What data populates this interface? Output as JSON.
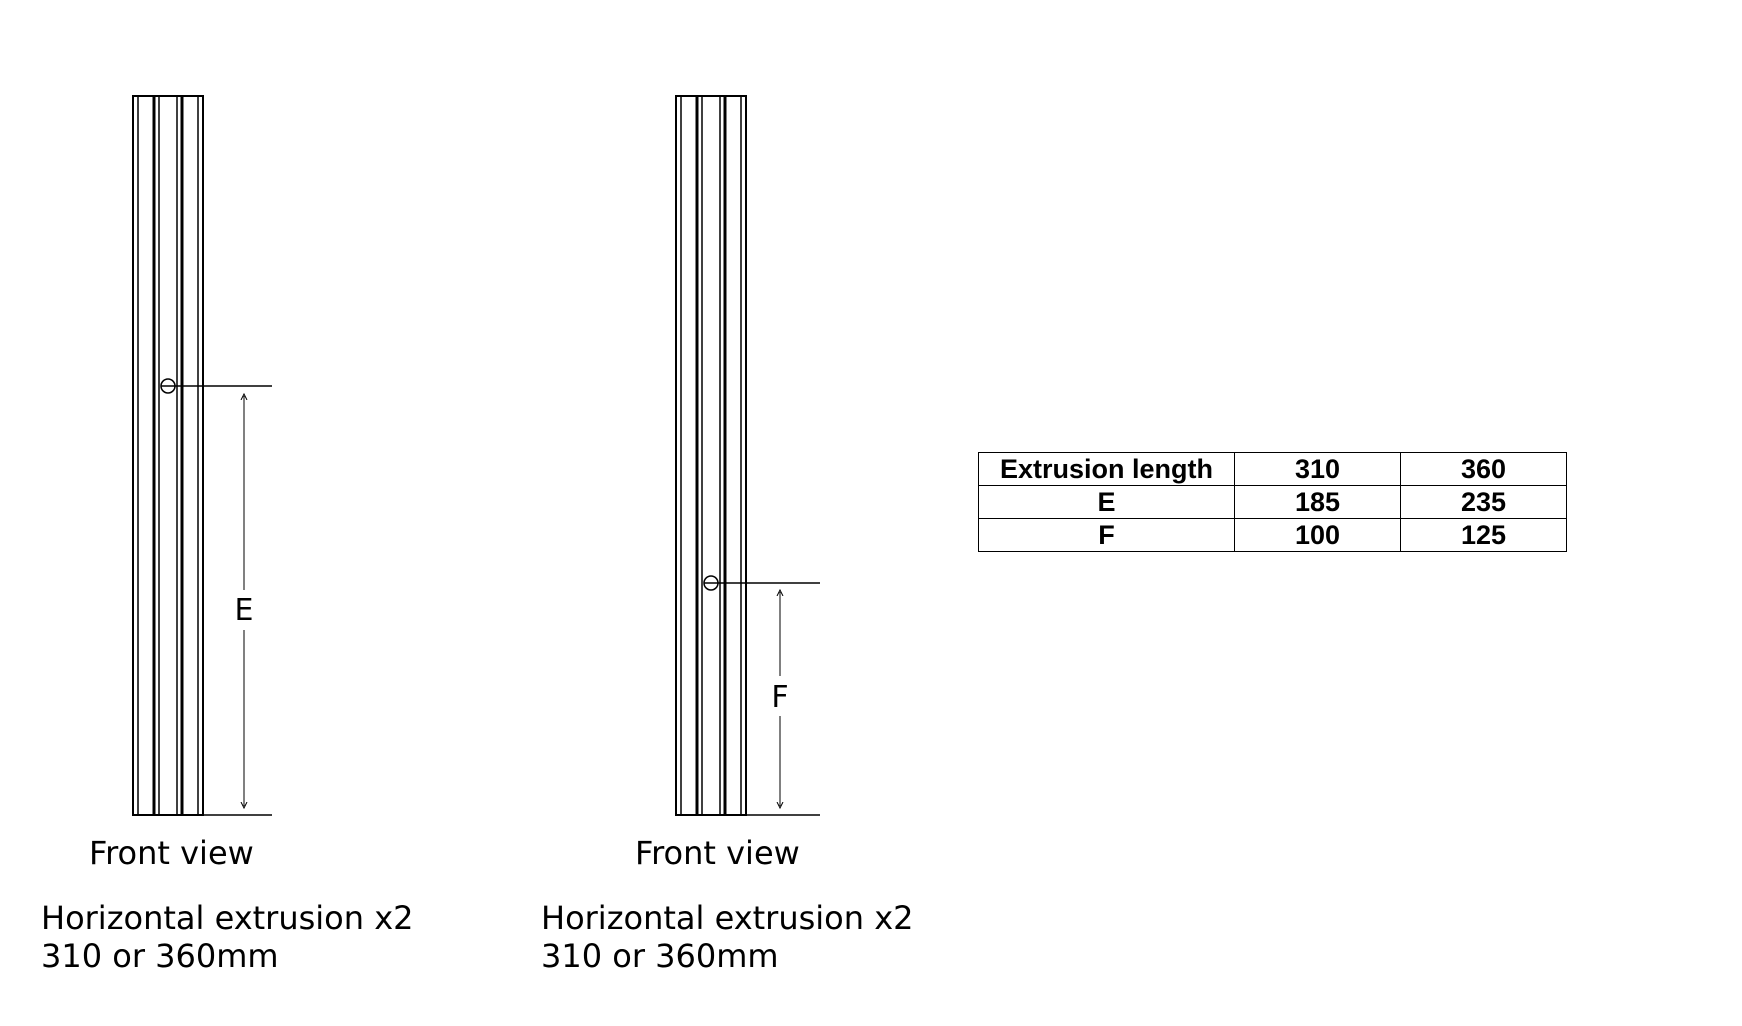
{
  "views": [
    {
      "dimension_label": "E",
      "view_label": "Front view",
      "caption_line1": "Horizontal extrusion x2",
      "caption_line2": "310 or 360mm"
    },
    {
      "dimension_label": "F",
      "view_label": "Front view",
      "caption_line1": "Horizontal extrusion x2",
      "caption_line2": "310 or 360mm"
    }
  ],
  "table": {
    "rows": [
      [
        "Extrusion length",
        "310",
        "360"
      ],
      [
        "E",
        "185",
        "235"
      ],
      [
        "F",
        "100",
        "125"
      ]
    ]
  }
}
